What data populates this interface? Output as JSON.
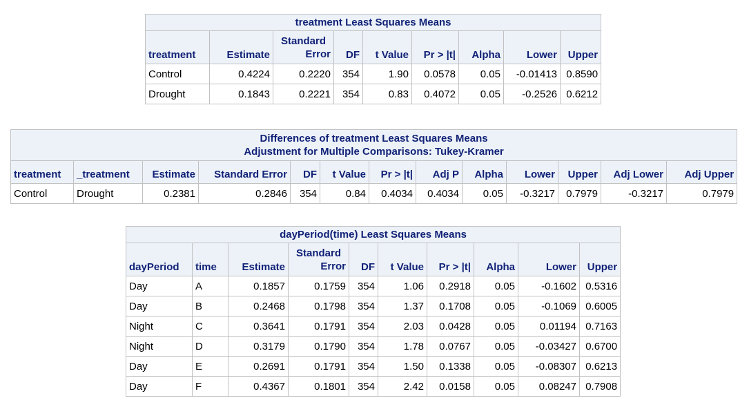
{
  "table1": {
    "title": "treatment Least Squares Means",
    "headers": {
      "treatment": "treatment",
      "estimate": "Estimate",
      "stderr_1": "Standard",
      "stderr_2": "Error",
      "df": "DF",
      "tvalue": "t Value",
      "pr": "Pr > |t|",
      "alpha": "Alpha",
      "lower": "Lower",
      "upper": "Upper"
    },
    "rows": [
      [
        "Control",
        "0.4224",
        "0.2220",
        "354",
        "1.90",
        "0.0578",
        "0.05",
        "-0.01413",
        "0.8590"
      ],
      [
        "Drought",
        "0.1843",
        "0.2221",
        "354",
        "0.83",
        "0.4072",
        "0.05",
        "-0.2526",
        "0.6212"
      ]
    ]
  },
  "table2": {
    "title_1": "Differences of treatment Least Squares Means",
    "title_2": "Adjustment for Multiple Comparisons: Tukey-Kramer",
    "headers": {
      "treatment": "treatment",
      "treatment2": "_treatment",
      "estimate": "Estimate",
      "stderr": "Standard Error",
      "df": "DF",
      "tvalue": "t Value",
      "pr": "Pr > |t|",
      "adjp": "Adj P",
      "alpha": "Alpha",
      "lower": "Lower",
      "upper": "Upper",
      "adjlower": "Adj Lower",
      "adjupper": "Adj Upper"
    },
    "rows": [
      [
        "Control",
        "Drought",
        "0.2381",
        "0.2846",
        "354",
        "0.84",
        "0.4034",
        "0.4034",
        "0.05",
        "-0.3217",
        "0.7979",
        "-0.3217",
        "0.7979"
      ]
    ]
  },
  "table3": {
    "title": "dayPeriod(time) Least Squares Means",
    "headers": {
      "dayperiod": "dayPeriod",
      "time": "time",
      "estimate": "Estimate",
      "stderr_1": "Standard",
      "stderr_2": "Error",
      "df": "DF",
      "tvalue": "t Value",
      "pr": "Pr > |t|",
      "alpha": "Alpha",
      "lower": "Lower",
      "upper": "Upper"
    },
    "rows": [
      [
        "Day",
        "A",
        "0.1857",
        "0.1759",
        "354",
        "1.06",
        "0.2918",
        "0.05",
        "-0.1602",
        "0.5316"
      ],
      [
        "Day",
        "B",
        "0.2468",
        "0.1798",
        "354",
        "1.37",
        "0.1708",
        "0.05",
        "-0.1069",
        "0.6005"
      ],
      [
        "Night",
        "C",
        "0.3641",
        "0.1791",
        "354",
        "2.03",
        "0.0428",
        "0.05",
        "0.01194",
        "0.7163"
      ],
      [
        "Night",
        "D",
        "0.3179",
        "0.1790",
        "354",
        "1.78",
        "0.0767",
        "0.05",
        "-0.03427",
        "0.6700"
      ],
      [
        "Day",
        "E",
        "0.2691",
        "0.1791",
        "354",
        "1.50",
        "0.1338",
        "0.05",
        "-0.08307",
        "0.6213"
      ],
      [
        "Day",
        "F",
        "0.4367",
        "0.1801",
        "354",
        "2.42",
        "0.0158",
        "0.05",
        "0.08247",
        "0.7908"
      ]
    ]
  }
}
